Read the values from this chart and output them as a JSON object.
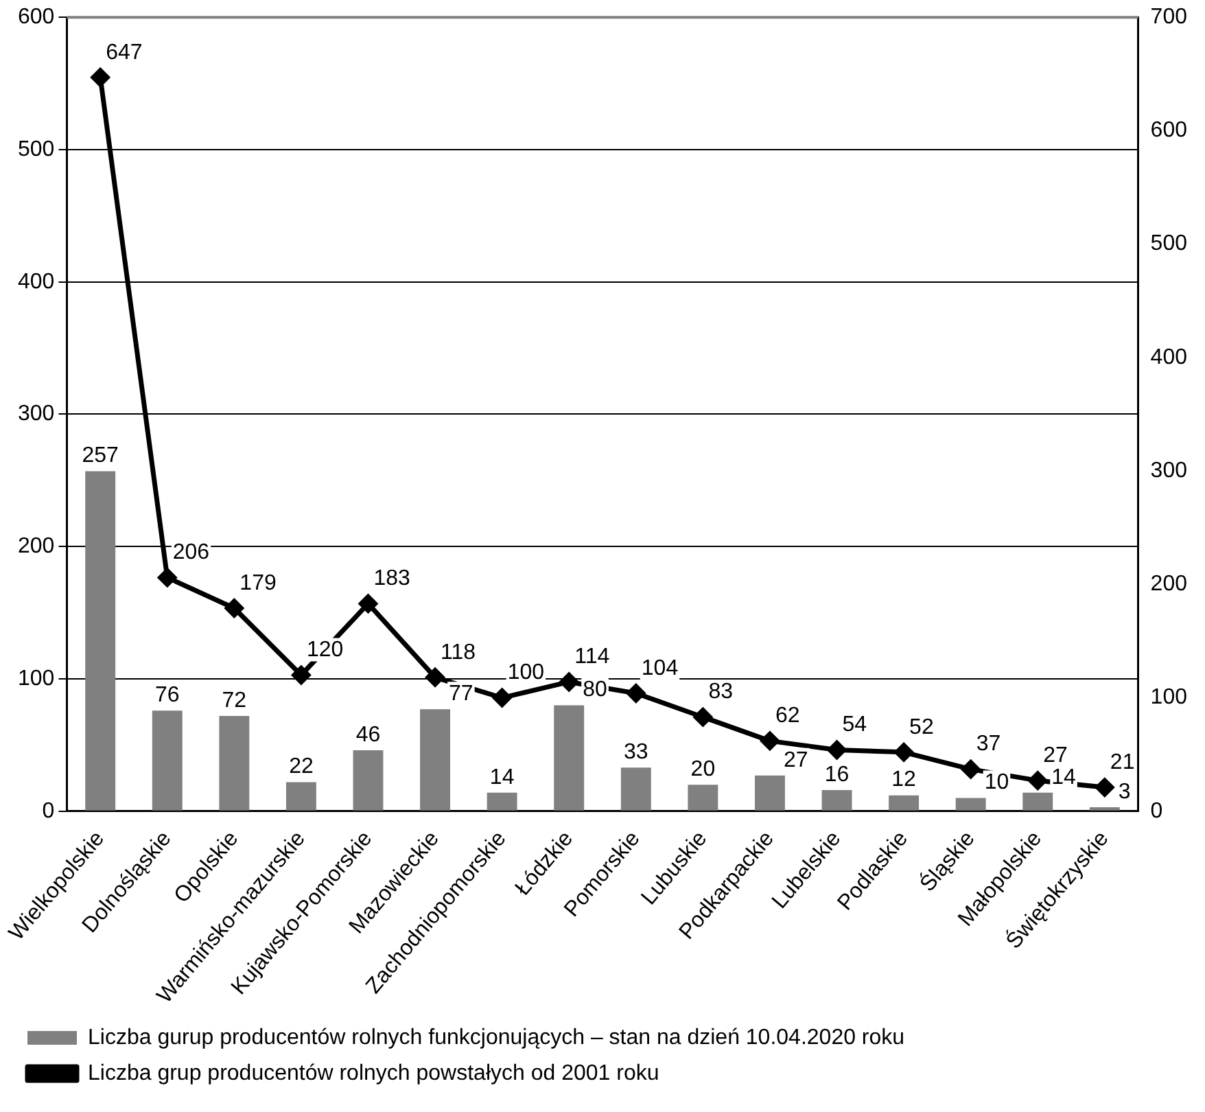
{
  "chart_data": {
    "type": "bar",
    "categories": [
      "Wielkopolskie",
      "Dolnośląskie",
      "Opolskie",
      "Warmińsko-mazurskie",
      "Kujawsko-Pomorskie",
      "Mazowieckie",
      "Zachodniopomorskie",
      "Łódzkie",
      "Pomorskie",
      "Lubuskie",
      "Podkarpackie",
      "Lubelskie",
      "Podlaskie",
      "Śląskie",
      "Małopolskie",
      "Świętokrzyskie"
    ],
    "series": [
      {
        "name": "Liczba gurup producentów rolnych funkcjonujących – stan na dzień 10.04.2020 roku",
        "color": "#808080",
        "values": [
          257,
          76,
          72,
          22,
          46,
          77,
          14,
          80,
          33,
          20,
          27,
          16,
          12,
          10,
          14,
          3
        ]
      },
      {
        "name": "Liczba grup producentów rolnych powstałych od 2001 roku",
        "type": "line",
        "axis": "y2",
        "color": "#000000",
        "marker": "diamond",
        "values": [
          647,
          206,
          179,
          120,
          183,
          118,
          100,
          114,
          104,
          83,
          62,
          54,
          52,
          37,
          27,
          21
        ]
      }
    ],
    "ylim": [
      0,
      600
    ],
    "yticks": [
      0,
      100,
      200,
      300,
      400,
      500,
      600
    ],
    "y2lim": [
      0,
      700
    ],
    "y2ticks": [
      0,
      100,
      200,
      300,
      400,
      500,
      600,
      700
    ],
    "grid": "y",
    "legend": "bottom",
    "data_labels": true
  }
}
